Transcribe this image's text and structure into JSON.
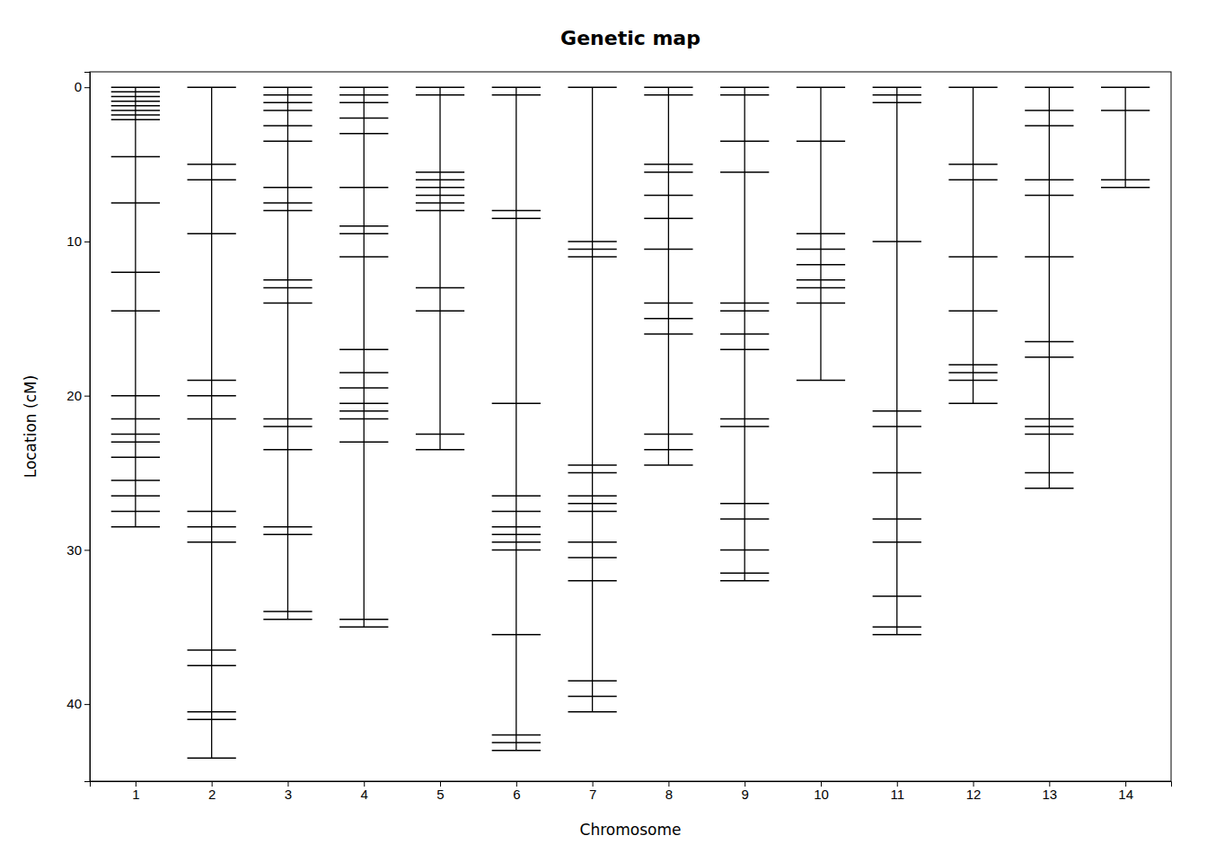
{
  "chart_data": {
    "type": "genetic_map",
    "title": "Genetic map",
    "xlabel": "Chromosome",
    "ylabel": "Location (cM)",
    "x": [
      1,
      2,
      3,
      4,
      5,
      6,
      7,
      8,
      9,
      10,
      11,
      12,
      13,
      14
    ],
    "values": [
      [
        0.0,
        0.3,
        0.6,
        0.9,
        1.2,
        1.5,
        1.8,
        2.1,
        4.5,
        7.5,
        12.0,
        14.5,
        20.0,
        21.5,
        22.5,
        23.0,
        24.0,
        25.5,
        26.5,
        27.5,
        28.5
      ],
      [
        0.0,
        5.0,
        6.0,
        9.5,
        19.0,
        20.0,
        21.5,
        27.5,
        28.5,
        29.5,
        36.5,
        37.5,
        40.5,
        41.0,
        43.5
      ],
      [
        0.0,
        0.5,
        1.0,
        1.5,
        2.5,
        3.5,
        6.5,
        7.5,
        8.0,
        12.5,
        13.0,
        14.0,
        21.5,
        22.0,
        23.5,
        28.5,
        29.0,
        34.0,
        34.5
      ],
      [
        0.0,
        0.5,
        1.0,
        2.0,
        3.0,
        6.5,
        9.0,
        9.5,
        11.0,
        17.0,
        18.5,
        19.5,
        20.5,
        21.0,
        21.5,
        23.0,
        34.5,
        35.0
      ],
      [
        0.0,
        0.5,
        5.5,
        6.0,
        6.5,
        7.0,
        7.5,
        8.0,
        13.0,
        14.5,
        22.5,
        23.5
      ],
      [
        0.0,
        0.5,
        8.0,
        8.5,
        20.5,
        26.5,
        27.5,
        28.5,
        29.0,
        29.5,
        30.0,
        35.5,
        42.0,
        42.5,
        43.0
      ],
      [
        0.0,
        10.0,
        10.5,
        11.0,
        24.5,
        25.0,
        26.5,
        27.0,
        27.5,
        29.5,
        30.5,
        32.0,
        38.5,
        39.5,
        40.5
      ],
      [
        0.0,
        0.5,
        5.0,
        5.5,
        7.0,
        8.5,
        10.5,
        14.0,
        15.0,
        16.0,
        22.5,
        23.5,
        24.5
      ],
      [
        0.0,
        0.5,
        3.5,
        5.5,
        14.0,
        14.5,
        16.0,
        17.0,
        21.5,
        22.0,
        27.0,
        28.0,
        30.0,
        31.5,
        32.0
      ],
      [
        0.0,
        3.5,
        9.5,
        10.5,
        11.5,
        12.5,
        13.0,
        14.0,
        19.0
      ],
      [
        0.0,
        0.5,
        1.0,
        10.0,
        21.0,
        22.0,
        25.0,
        28.0,
        29.5,
        33.0,
        35.0,
        35.5
      ],
      [
        0.0,
        5.0,
        6.0,
        11.0,
        14.5,
        18.0,
        18.5,
        19.0,
        20.5
      ],
      [
        0.0,
        1.5,
        2.5,
        6.0,
        7.0,
        11.0,
        16.5,
        17.5,
        21.5,
        22.0,
        22.5,
        25.0,
        26.0
      ],
      [
        0.0,
        1.5,
        6.0,
        6.5
      ]
    ],
    "xlim": [
      0.4,
      14.6
    ],
    "xticks": [
      1,
      2,
      3,
      4,
      5,
      6,
      7,
      8,
      9,
      10,
      11,
      12,
      13,
      14
    ],
    "ylim": [
      45,
      -1
    ],
    "yticks": [
      0,
      10,
      20,
      30,
      40
    ],
    "color": "black"
  }
}
